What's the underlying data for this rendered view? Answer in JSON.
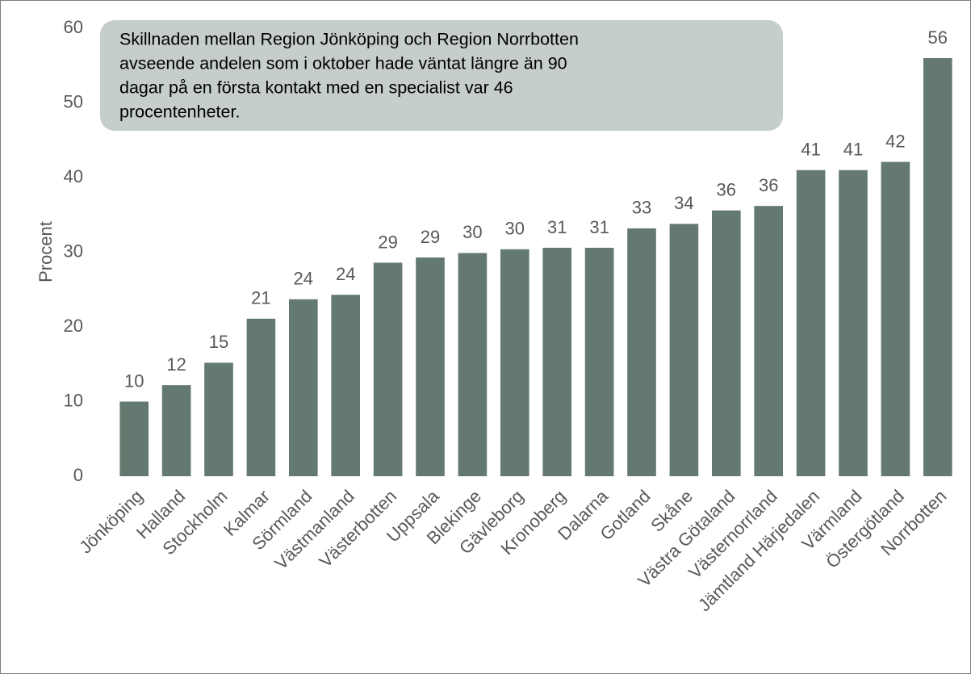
{
  "chart_data": {
    "type": "bar",
    "annotation": [
      "Skillnaden mellan Region Jönköping och Region Norrbotten",
      "avseende andelen som i oktober hade väntat längre än 90",
      "dagar på en första kontakt med en specialist var 46",
      "procentenheter."
    ],
    "y_label": "Procent",
    "categories": [
      "Jönköping",
      "Halland",
      "Stockholm",
      "Kalmar",
      "Sörmland",
      "Västmanland",
      "Västerbotten",
      "Uppsala",
      "Blekinge",
      "Gävleborg",
      "Kronoberg",
      "Dalarna",
      "Gotland",
      "Skåne",
      "Västra Götaland",
      "Västernorrland",
      "Jämtland Härjedalen",
      "Värmland",
      "Östergötland",
      "Norrbotten"
    ],
    "values": [
      10.0,
      12.2,
      15.2,
      21.1,
      23.7,
      24.3,
      28.6,
      29.3,
      29.9,
      30.4,
      30.6,
      30.6,
      33.2,
      33.8,
      35.6,
      36.2,
      41.0,
      41.0,
      42.1,
      56.0
    ],
    "value_labels": [
      "10",
      "12",
      "15",
      "21",
      "24",
      "24",
      "29",
      "29",
      "30",
      "30",
      "31",
      "31",
      "33",
      "34",
      "36",
      "36",
      "41",
      "41",
      "42",
      "56"
    ],
    "color": "#647a70",
    "ylim": [
      0,
      60
    ],
    "yticks": [
      0,
      10,
      20,
      30,
      40,
      50,
      60
    ],
    "grid": false
  }
}
